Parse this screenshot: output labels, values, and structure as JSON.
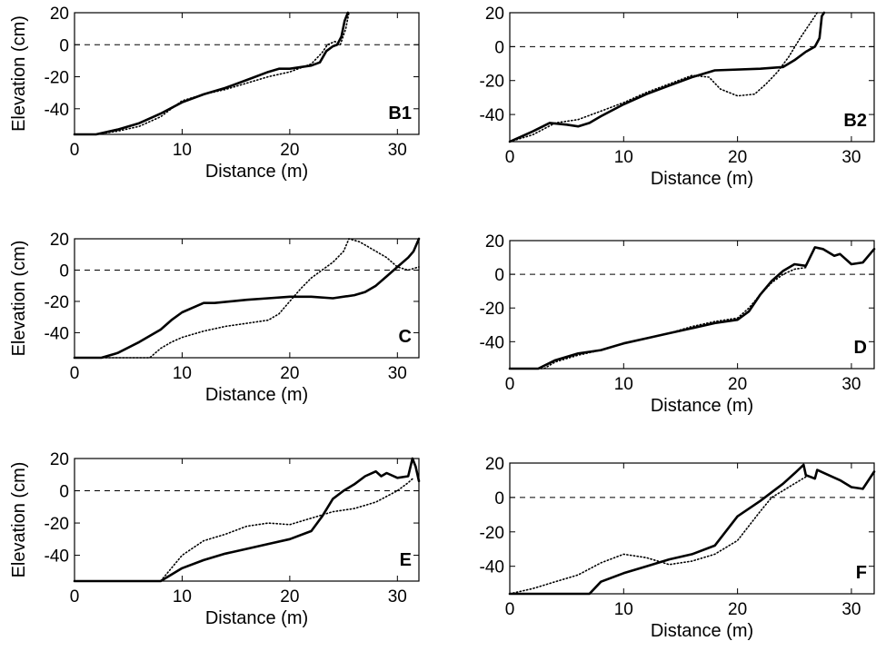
{
  "chart_data": [
    {
      "type": "line",
      "panel_label": "B1",
      "xlabel": "Distance (m)",
      "ylabel": "Elevation (cm)",
      "xlim": [
        0,
        32
      ],
      "ylim": [
        -56,
        20
      ],
      "xticks": [
        0,
        10,
        20,
        30
      ],
      "yticks": [
        -40,
        -20,
        0,
        20
      ],
      "reference_line_y": 0,
      "grid": false,
      "series": [
        {
          "style": "solid",
          "points": [
            [
              0,
              -56
            ],
            [
              2,
              -56
            ],
            [
              4,
              -53
            ],
            [
              6,
              -49
            ],
            [
              8,
              -43
            ],
            [
              10,
              -36
            ],
            [
              12,
              -31
            ],
            [
              14,
              -27
            ],
            [
              16,
              -22
            ],
            [
              18,
              -17
            ],
            [
              19,
              -15
            ],
            [
              20,
              -15
            ],
            [
              22,
              -13
            ],
            [
              22.8,
              -11
            ],
            [
              23.4,
              -4
            ],
            [
              24,
              -1
            ],
            [
              24.4,
              0
            ],
            [
              24.8,
              5
            ],
            [
              25.1,
              15
            ],
            [
              25.4,
              20
            ]
          ]
        },
        {
          "style": "dotted",
          "points": [
            [
              0,
              -56
            ],
            [
              2,
              -56
            ],
            [
              4,
              -54
            ],
            [
              6,
              -51
            ],
            [
              8,
              -45
            ],
            [
              10,
              -35
            ],
            [
              12,
              -31
            ],
            [
              14,
              -28
            ],
            [
              16,
              -24
            ],
            [
              18,
              -20
            ],
            [
              20,
              -17
            ],
            [
              22,
              -12
            ],
            [
              23,
              -5
            ],
            [
              23.5,
              0
            ],
            [
              24.2,
              2
            ],
            [
              24.7,
              0
            ],
            [
              25.2,
              10
            ],
            [
              25.5,
              20
            ]
          ]
        }
      ]
    },
    {
      "type": "line",
      "panel_label": "B2",
      "xlabel": "Distance (m)",
      "ylabel": "",
      "xlim": [
        0,
        32
      ],
      "ylim": [
        -56,
        20
      ],
      "xticks": [
        0,
        10,
        20,
        30
      ],
      "yticks": [
        -40,
        -20,
        0,
        20
      ],
      "reference_line_y": 0,
      "grid": false,
      "series": [
        {
          "style": "solid",
          "points": [
            [
              0,
              -56
            ],
            [
              2,
              -50
            ],
            [
              3.5,
              -45
            ],
            [
              5,
              -46
            ],
            [
              6,
              -47
            ],
            [
              7,
              -45
            ],
            [
              8,
              -41
            ],
            [
              10,
              -34
            ],
            [
              12,
              -28
            ],
            [
              14,
              -23
            ],
            [
              16,
              -18
            ],
            [
              18,
              -14
            ],
            [
              22,
              -13
            ],
            [
              24,
              -12
            ],
            [
              25,
              -8
            ],
            [
              26,
              -3
            ],
            [
              26.8,
              0
            ],
            [
              27.2,
              5
            ],
            [
              27.4,
              18
            ],
            [
              27.6,
              20
            ]
          ]
        },
        {
          "style": "dotted",
          "points": [
            [
              0,
              -56
            ],
            [
              2,
              -52
            ],
            [
              4,
              -45
            ],
            [
              6,
              -43
            ],
            [
              8,
              -38
            ],
            [
              10,
              -33
            ],
            [
              12,
              -27
            ],
            [
              14,
              -22
            ],
            [
              16,
              -17
            ],
            [
              17.5,
              -18
            ],
            [
              18.5,
              -25
            ],
            [
              20,
              -29
            ],
            [
              21.5,
              -28
            ],
            [
              22.5,
              -22
            ],
            [
              23.5,
              -15
            ],
            [
              24.5,
              -6
            ],
            [
              25.5,
              5
            ],
            [
              26.5,
              15
            ],
            [
              27,
              20
            ]
          ]
        }
      ]
    },
    {
      "type": "line",
      "panel_label": "C",
      "xlabel": "Distance (m)",
      "ylabel": "Elevation (cm)",
      "xlim": [
        0,
        32
      ],
      "ylim": [
        -56,
        20
      ],
      "xticks": [
        0,
        10,
        20,
        30
      ],
      "yticks": [
        -40,
        -20,
        0,
        20
      ],
      "reference_line_y": 0,
      "grid": false,
      "series": [
        {
          "style": "solid",
          "points": [
            [
              0,
              -56
            ],
            [
              2.5,
              -56
            ],
            [
              4,
              -53
            ],
            [
              6,
              -46
            ],
            [
              8,
              -38
            ],
            [
              9,
              -32
            ],
            [
              10,
              -27
            ],
            [
              11,
              -24
            ],
            [
              12,
              -21
            ],
            [
              13,
              -21
            ],
            [
              16,
              -19
            ],
            [
              18,
              -18
            ],
            [
              20,
              -17
            ],
            [
              22,
              -17
            ],
            [
              24,
              -18
            ],
            [
              26,
              -16
            ],
            [
              27,
              -14
            ],
            [
              28,
              -10
            ],
            [
              29,
              -4
            ],
            [
              30,
              2
            ],
            [
              31,
              8
            ],
            [
              31.5,
              12
            ],
            [
              32,
              20
            ]
          ]
        },
        {
          "style": "dotted",
          "points": [
            [
              0,
              -56
            ],
            [
              7,
              -56
            ],
            [
              8,
              -50
            ],
            [
              9,
              -46
            ],
            [
              10,
              -43
            ],
            [
              12,
              -39
            ],
            [
              14,
              -36
            ],
            [
              16,
              -34
            ],
            [
              18,
              -32
            ],
            [
              19,
              -28
            ],
            [
              20,
              -20
            ],
            [
              21,
              -12
            ],
            [
              22,
              -5
            ],
            [
              23,
              0
            ],
            [
              24,
              5
            ],
            [
              25,
              12
            ],
            [
              25.5,
              20
            ],
            [
              26.5,
              18
            ],
            [
              27.5,
              14
            ],
            [
              29,
              8
            ],
            [
              30,
              2
            ],
            [
              31,
              0
            ],
            [
              32,
              2
            ]
          ]
        }
      ]
    },
    {
      "type": "line",
      "panel_label": "D",
      "xlabel": "Distance (m)",
      "ylabel": "",
      "xlim": [
        0,
        32
      ],
      "ylim": [
        -56,
        20
      ],
      "xticks": [
        0,
        10,
        20,
        30
      ],
      "yticks": [
        -40,
        -20,
        0,
        20
      ],
      "reference_line_y": 0,
      "grid": false,
      "series": [
        {
          "style": "solid",
          "points": [
            [
              0,
              -56
            ],
            [
              2.5,
              -56
            ],
            [
              4,
              -51
            ],
            [
              6,
              -47
            ],
            [
              8,
              -45
            ],
            [
              10,
              -41
            ],
            [
              12,
              -38
            ],
            [
              14,
              -35
            ],
            [
              16,
              -32
            ],
            [
              18,
              -29
            ],
            [
              20,
              -27
            ],
            [
              21,
              -22
            ],
            [
              22,
              -12
            ],
            [
              23,
              -4
            ],
            [
              24,
              2
            ],
            [
              25,
              6
            ],
            [
              26,
              5
            ],
            [
              26.8,
              16
            ],
            [
              27.5,
              15
            ],
            [
              28.5,
              11
            ],
            [
              29,
              12
            ],
            [
              30,
              6
            ],
            [
              31,
              7
            ],
            [
              32,
              15
            ]
          ]
        },
        {
          "style": "dotted",
          "points": [
            [
              0,
              -56
            ],
            [
              3,
              -56
            ],
            [
              4,
              -52
            ],
            [
              6,
              -48
            ],
            [
              8,
              -45
            ],
            [
              10,
              -41
            ],
            [
              12,
              -38
            ],
            [
              14,
              -35
            ],
            [
              16,
              -31
            ],
            [
              18,
              -28
            ],
            [
              20,
              -26
            ],
            [
              21,
              -20
            ],
            [
              22,
              -12
            ],
            [
              23,
              -5
            ],
            [
              24,
              0
            ],
            [
              25,
              3
            ],
            [
              26,
              4
            ]
          ]
        }
      ]
    },
    {
      "type": "line",
      "panel_label": "E",
      "xlabel": "Distance (m)",
      "ylabel": "Elevation (cm)",
      "xlim": [
        0,
        32
      ],
      "ylim": [
        -56,
        20
      ],
      "xticks": [
        0,
        10,
        20,
        30
      ],
      "yticks": [
        -40,
        -20,
        0,
        20
      ],
      "reference_line_y": 0,
      "grid": false,
      "series": [
        {
          "style": "solid",
          "points": [
            [
              0,
              -56
            ],
            [
              8,
              -56
            ],
            [
              9,
              -52
            ],
            [
              10,
              -48
            ],
            [
              12,
              -43
            ],
            [
              14,
              -39
            ],
            [
              16,
              -36
            ],
            [
              18,
              -33
            ],
            [
              20,
              -30
            ],
            [
              22,
              -25
            ],
            [
              23,
              -16
            ],
            [
              24,
              -5
            ],
            [
              25,
              0
            ],
            [
              26,
              4
            ],
            [
              27,
              9
            ],
            [
              28,
              12
            ],
            [
              28.5,
              9
            ],
            [
              29,
              11
            ],
            [
              30,
              8
            ],
            [
              31,
              9
            ],
            [
              31.4,
              20
            ],
            [
              31.7,
              15
            ],
            [
              32,
              6
            ]
          ]
        },
        {
          "style": "dotted",
          "points": [
            [
              0,
              -56
            ],
            [
              8,
              -56
            ],
            [
              9,
              -48
            ],
            [
              10,
              -40
            ],
            [
              12,
              -31
            ],
            [
              14,
              -27
            ],
            [
              16,
              -22
            ],
            [
              18,
              -20
            ],
            [
              20,
              -21
            ],
            [
              22,
              -17
            ],
            [
              24,
              -13
            ],
            [
              26,
              -11
            ],
            [
              28,
              -7
            ],
            [
              30,
              0
            ],
            [
              31,
              5
            ],
            [
              31.5,
              8
            ]
          ]
        }
      ]
    },
    {
      "type": "line",
      "panel_label": "F",
      "xlabel": "Distance (m)",
      "ylabel": "",
      "xlim": [
        0,
        32
      ],
      "ylim": [
        -56,
        20
      ],
      "xticks": [
        0,
        10,
        20,
        30
      ],
      "yticks": [
        -40,
        -20,
        0,
        20
      ],
      "reference_line_y": 0,
      "grid": false,
      "series": [
        {
          "style": "solid",
          "points": [
            [
              0,
              -56
            ],
            [
              7,
              -56
            ],
            [
              8,
              -49
            ],
            [
              10,
              -44
            ],
            [
              12,
              -40
            ],
            [
              14,
              -36
            ],
            [
              16,
              -33
            ],
            [
              18,
              -28
            ],
            [
              20,
              -11
            ],
            [
              22,
              -2
            ],
            [
              23,
              3
            ],
            [
              24,
              8
            ],
            [
              25,
              14
            ],
            [
              25.8,
              19
            ],
            [
              26,
              13
            ],
            [
              26.8,
              11
            ],
            [
              27,
              16
            ],
            [
              28,
              13
            ],
            [
              29,
              10
            ],
            [
              30,
              6
            ],
            [
              31,
              5
            ],
            [
              32,
              15
            ]
          ]
        },
        {
          "style": "dotted",
          "points": [
            [
              0,
              -56
            ],
            [
              2,
              -53
            ],
            [
              4,
              -49
            ],
            [
              6,
              -45
            ],
            [
              8,
              -38
            ],
            [
              10,
              -33
            ],
            [
              12,
              -35
            ],
            [
              14,
              -39
            ],
            [
              16,
              -37
            ],
            [
              18,
              -33
            ],
            [
              20,
              -25
            ],
            [
              22,
              -8
            ],
            [
              23,
              0
            ],
            [
              24,
              4
            ],
            [
              25,
              8
            ],
            [
              26,
              12
            ]
          ]
        }
      ]
    }
  ]
}
